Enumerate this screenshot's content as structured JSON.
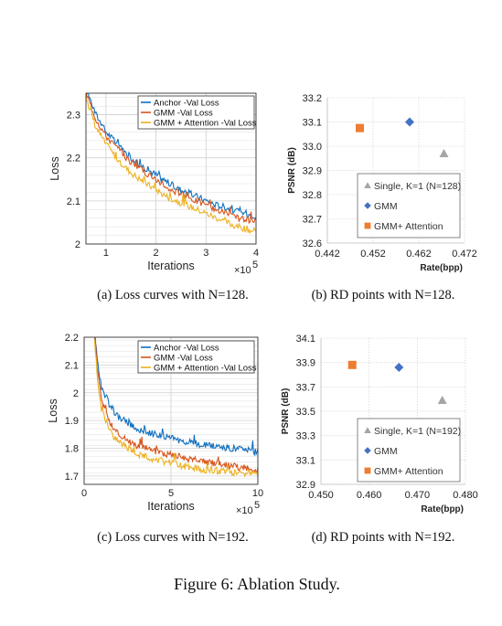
{
  "figure_caption": "Figure 6: Ablation Study.",
  "colors": {
    "anchor": "#0f6fbf",
    "gmm": "#d95319",
    "gmm_att": "#edb120",
    "single": "#a5a5a5",
    "gmm_pt": "#4472c4",
    "gmm_att_pt": "#ed7d31"
  },
  "chart_data": [
    {
      "id": "a",
      "type": "line",
      "caption": "(a)  Loss curves with N=128.",
      "xlabel": "Iterations",
      "ylabel": "Loss",
      "x_multiplier": "×10",
      "x_multiplier_exp": "5",
      "xlim": [
        0.6,
        4.0
      ],
      "ylim": [
        2.0,
        2.35
      ],
      "xticks": [
        1,
        2,
        3,
        4
      ],
      "yticks": [
        2,
        2.1,
        2.2,
        2.3
      ],
      "ytick_labels": [
        "2",
        "2.1",
        "2.2",
        "2.3"
      ],
      "grid": true,
      "legend_position": "top-right",
      "series": [
        {
          "name": "Anchor -Val Loss",
          "color": "#0f6fbf",
          "x": [
            0.6,
            0.8,
            1.0,
            1.2,
            1.4,
            1.6,
            1.8,
            2.0,
            2.2,
            2.4,
            2.6,
            2.8,
            3.0,
            3.2,
            3.4,
            3.6,
            3.8,
            4.0
          ],
          "y": [
            2.36,
            2.3,
            2.26,
            2.235,
            2.21,
            2.19,
            2.175,
            2.16,
            2.145,
            2.13,
            2.12,
            2.11,
            2.1,
            2.09,
            2.085,
            2.075,
            2.07,
            2.065
          ]
        },
        {
          "name": "GMM -Val Loss",
          "color": "#d95319",
          "x": [
            0.6,
            0.8,
            1.0,
            1.2,
            1.4,
            1.6,
            1.8,
            2.0,
            2.2,
            2.4,
            2.6,
            2.8,
            3.0,
            3.2,
            3.4,
            3.6,
            3.8,
            4.0
          ],
          "y": [
            2.35,
            2.29,
            2.25,
            2.225,
            2.2,
            2.18,
            2.165,
            2.15,
            2.135,
            2.12,
            2.11,
            2.1,
            2.09,
            2.08,
            2.07,
            2.06,
            2.055,
            2.05
          ]
        },
        {
          "name": "GMM + Attention -Val Loss",
          "color": "#edb120",
          "x": [
            0.6,
            0.8,
            1.0,
            1.2,
            1.4,
            1.6,
            1.8,
            2.0,
            2.2,
            2.4,
            2.6,
            2.8,
            3.0,
            3.2,
            3.4,
            3.6,
            3.8,
            4.0
          ],
          "y": [
            2.34,
            2.27,
            2.23,
            2.2,
            2.175,
            2.155,
            2.14,
            2.125,
            2.11,
            2.1,
            2.09,
            2.08,
            2.07,
            2.06,
            2.05,
            2.04,
            2.035,
            2.025
          ]
        }
      ]
    },
    {
      "id": "b",
      "type": "scatter",
      "caption": "(b)  RD points with N=128.",
      "xlabel": "Rate(bpp)",
      "ylabel": "PSNR (dB)",
      "xlim": [
        0.442,
        0.472
      ],
      "ylim": [
        32.6,
        33.2
      ],
      "xticks": [
        0.442,
        0.452,
        0.462,
        0.472
      ],
      "xtick_labels": [
        "0.442",
        "0.452",
        "0.462",
        "0.472"
      ],
      "yticks": [
        32.6,
        32.7,
        32.8,
        32.9,
        33.0,
        33.1,
        33.2
      ],
      "ytick_labels": [
        "32.6",
        "32.7",
        "32.8",
        "32.9",
        "33.0",
        "33.1",
        "33.2"
      ],
      "grid": true,
      "legend_position": "bottom-right",
      "series": [
        {
          "name": "Single, K=1 (N=128)",
          "marker": "triangle",
          "color": "#a5a5a5",
          "x": [
            0.4675
          ],
          "y": [
            32.97
          ]
        },
        {
          "name": "GMM",
          "marker": "diamond",
          "color": "#4472c4",
          "x": [
            0.46
          ],
          "y": [
            33.1
          ]
        },
        {
          "name": "GMM+ Attention",
          "marker": "square",
          "color": "#ed7d31",
          "x": [
            0.4491
          ],
          "y": [
            33.075
          ]
        }
      ]
    },
    {
      "id": "c",
      "type": "line",
      "caption": "(c)  Loss curves with N=192.",
      "xlabel": "Iterations",
      "ylabel": "Loss",
      "x_multiplier": "×10",
      "x_multiplier_exp": "5",
      "xlim": [
        0,
        10
      ],
      "ylim": [
        1.67,
        2.2
      ],
      "xticks": [
        0,
        5,
        10
      ],
      "yticks": [
        1.7,
        1.8,
        1.9,
        2.0,
        2.1,
        2.2
      ],
      "ytick_labels": [
        "1.7",
        "1.8",
        "1.9",
        "2",
        "2.1",
        "2.2"
      ],
      "grid": true,
      "legend_position": "top-right",
      "series": [
        {
          "name": "Anchor -Val Loss",
          "color": "#0f6fbf",
          "x": [
            0.6,
            0.8,
            1,
            1.5,
            2,
            2.5,
            3,
            4,
            5,
            6,
            7,
            8,
            9,
            10
          ],
          "y": [
            2.2,
            2.1,
            2.02,
            1.95,
            1.91,
            1.89,
            1.87,
            1.85,
            1.835,
            1.82,
            1.81,
            1.8,
            1.795,
            1.785
          ]
        },
        {
          "name": "GMM -Val Loss",
          "color": "#d95319",
          "x": [
            0.6,
            0.8,
            1,
            1.5,
            2,
            2.5,
            3,
            4,
            5,
            6,
            7,
            8,
            9,
            10
          ],
          "y": [
            2.2,
            2.06,
            1.97,
            1.89,
            1.85,
            1.83,
            1.81,
            1.79,
            1.775,
            1.76,
            1.75,
            1.74,
            1.73,
            1.72
          ]
        },
        {
          "name": "GMM + Attention -Val Loss",
          "color": "#edb120",
          "x": [
            0.6,
            0.8,
            1,
            1.5,
            2,
            2.5,
            3,
            4,
            5,
            6,
            7,
            8,
            9,
            10
          ],
          "y": [
            2.2,
            2.03,
            1.94,
            1.86,
            1.82,
            1.8,
            1.78,
            1.76,
            1.745,
            1.73,
            1.72,
            1.715,
            1.71,
            1.705
          ]
        }
      ]
    },
    {
      "id": "d",
      "type": "scatter",
      "caption": "(d)  RD points with N=192.",
      "xlabel": "Rate(bpp)",
      "ylabel": "PSNR (dB)",
      "xlim": [
        0.45,
        0.48
      ],
      "ylim": [
        32.9,
        34.1
      ],
      "xticks": [
        0.45,
        0.46,
        0.47,
        0.48
      ],
      "xtick_labels": [
        "0.450",
        "0.460",
        "0.470",
        "0.480"
      ],
      "yticks": [
        32.9,
        33.1,
        33.3,
        33.5,
        33.7,
        33.9,
        34.1
      ],
      "ytick_labels": [
        "32.9",
        "33.1",
        "33.3",
        "33.5",
        "33.7",
        "33.9",
        "34.1"
      ],
      "grid": true,
      "legend_position": "bottom-right",
      "series": [
        {
          "name": "Single, K=1 (N=192)",
          "marker": "triangle",
          "color": "#a5a5a5",
          "x": [
            0.4752
          ],
          "y": [
            33.59
          ]
        },
        {
          "name": "GMM",
          "marker": "diamond",
          "color": "#4472c4",
          "x": [
            0.4662
          ],
          "y": [
            33.86
          ]
        },
        {
          "name": "GMM+ Attention",
          "marker": "square",
          "color": "#ed7d31",
          "x": [
            0.4565
          ],
          "y": [
            33.88
          ]
        }
      ]
    }
  ]
}
